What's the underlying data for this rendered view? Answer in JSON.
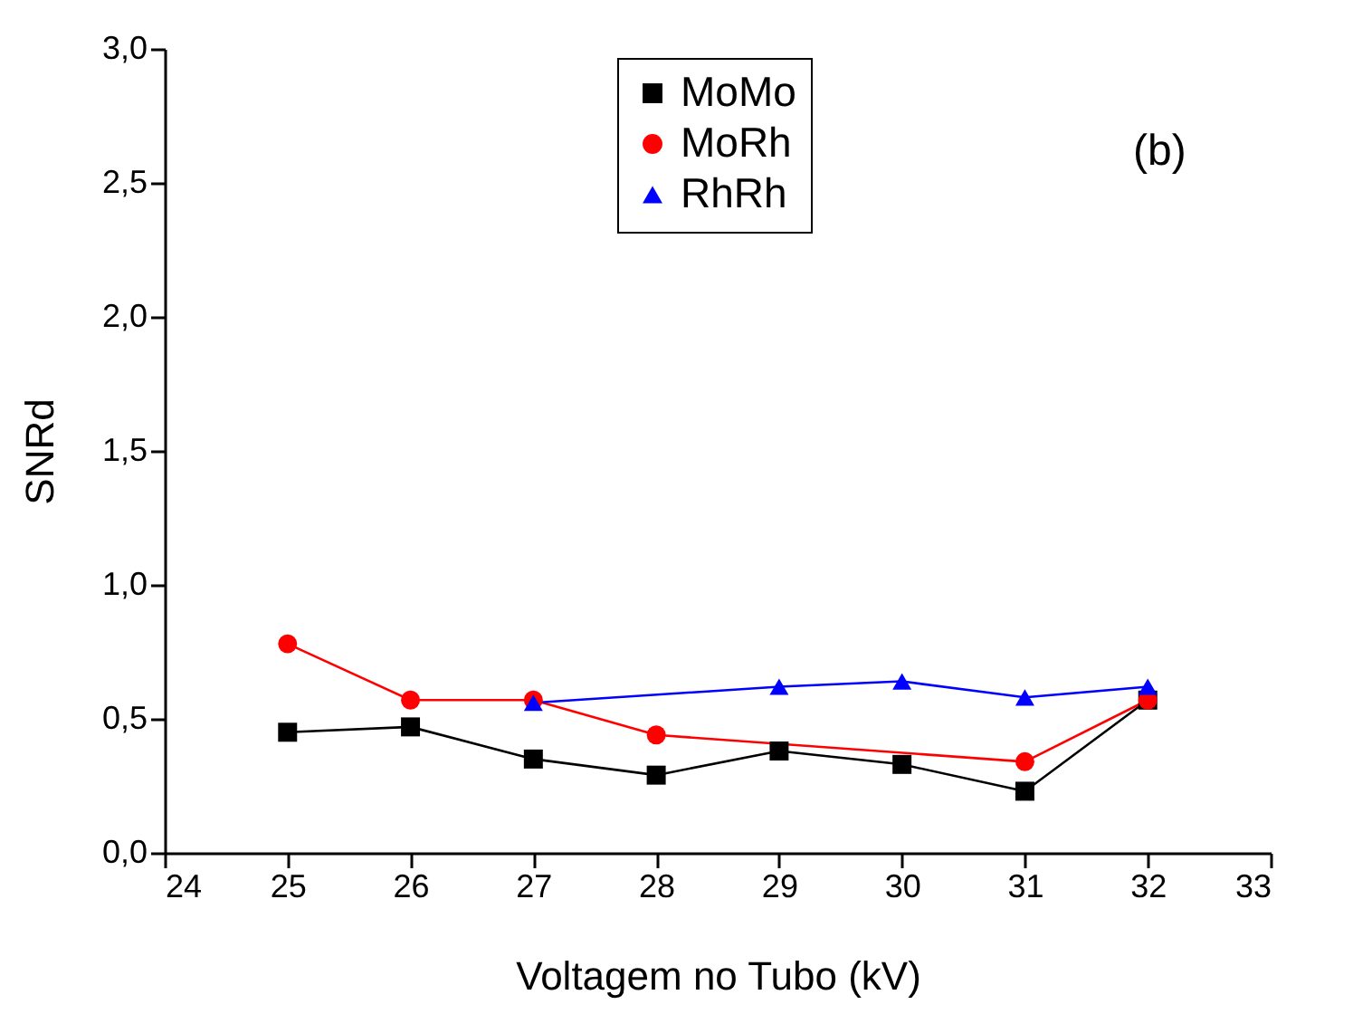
{
  "chart_data": {
    "type": "line",
    "xlabel": "Voltagem no Tubo (kV)",
    "ylabel": "SNRd",
    "annotations": [
      "(b)"
    ],
    "x": [
      25,
      26,
      27,
      28,
      29,
      30,
      31,
      32
    ],
    "series": [
      {
        "name": "MoMo",
        "color": "#000000",
        "marker": "square",
        "values": [
          0.45,
          0.47,
          0.35,
          0.29,
          0.38,
          0.33,
          0.23,
          0.57
        ]
      },
      {
        "name": "MoRh",
        "color": "#ff0000",
        "marker": "circle",
        "values": [
          0.78,
          0.57,
          0.57,
          0.44,
          null,
          null,
          0.34,
          0.57
        ]
      },
      {
        "name": "RhRh",
        "color": "#0000ff",
        "marker": "triangle",
        "values": [
          null,
          null,
          0.56,
          null,
          0.62,
          0.64,
          0.58,
          0.62
        ]
      }
    ],
    "xlim": [
      24,
      33
    ],
    "xticks": [
      24,
      25,
      26,
      27,
      28,
      29,
      30,
      31,
      32,
      33
    ],
    "ylim": [
      0,
      3.0
    ],
    "yticks": [
      {
        "value": 0,
        "label": "0,0"
      },
      {
        "value": 0.5,
        "label": "0,5"
      },
      {
        "value": 1.0,
        "label": "1,0"
      },
      {
        "value": 1.5,
        "label": "1,5"
      },
      {
        "value": 2.0,
        "label": "2,0"
      },
      {
        "value": 2.5,
        "label": "2,5"
      },
      {
        "value": 3.0,
        "label": "3,0"
      }
    ],
    "grid": false,
    "legend": "top"
  }
}
